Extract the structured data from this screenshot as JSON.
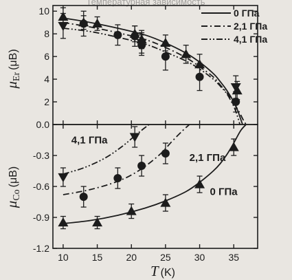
{
  "page_header": "Температурная зависимость",
  "chart_data": [
    {
      "type": "scatter",
      "panel": "top",
      "ylabel": {
        "symbol": "μ",
        "subscript": "Er",
        "unit": "(μB)"
      },
      "ylim": [
        0,
        10.5
      ],
      "yticks": [
        0.0,
        2,
        4,
        6,
        8,
        10
      ],
      "ytick_labels": [
        "0.0",
        "2",
        "4",
        "6",
        "8",
        "10"
      ],
      "xlim": [
        8.5,
        38.5
      ],
      "legend": {
        "placement": "top-right",
        "entries": [
          {
            "label": "0 ГПа",
            "line": "solid"
          },
          {
            "label": "2,1 ГПа",
            "line": "dash-dot"
          },
          {
            "label": "4,1 ГПа",
            "line": "dash-dot-dot"
          }
        ]
      },
      "series": [
        {
          "name": "0 ГПа",
          "marker": "triangle-up",
          "line": "solid",
          "points": [
            {
              "x": 10,
              "y": 9.5,
              "err": 0.8
            },
            {
              "x": 13,
              "y": 9.0,
              "err": 0.6
            },
            {
              "x": 15,
              "y": 8.9,
              "err": 0.6
            },
            {
              "x": 20.5,
              "y": 8.0,
              "err": 0.7
            },
            {
              "x": 21.5,
              "y": 7.5,
              "err": 0.8
            },
            {
              "x": 25,
              "y": 7.2,
              "err": 0.7
            },
            {
              "x": 28,
              "y": 6.2,
              "err": 0.8
            },
            {
              "x": 30,
              "y": 5.3,
              "err": 0.9
            },
            {
              "x": 35.5,
              "y": 3.0,
              "err": 0.8
            }
          ],
          "fit": {
            "x": [
              10,
              14,
              18,
              22,
              25,
              28,
              30,
              32,
              33,
              34,
              35,
              35.6,
              36.0,
              36.3
            ],
            "y": [
              9.4,
              9.0,
              8.5,
              7.9,
              7.2,
              6.3,
              5.5,
              4.5,
              3.8,
              3.0,
              2.0,
              1.2,
              0.5,
              0.0
            ]
          }
        },
        {
          "name": "2,1 ГПа",
          "marker": "circle",
          "line": "dash-dot",
          "points": [
            {
              "x": 13,
              "y": 8.9,
              "err": 1.1
            },
            {
              "x": 18,
              "y": 7.9,
              "err": 0.9
            },
            {
              "x": 20.5,
              "y": 7.8,
              "err": 0.9
            },
            {
              "x": 21.5,
              "y": 7.0,
              "err": 0.9
            },
            {
              "x": 25,
              "y": 6.0,
              "err": 1.2
            },
            {
              "x": 30,
              "y": 4.2,
              "err": 1.2
            },
            {
              "x": 35.3,
              "y": 2.0,
              "err": 0.9
            }
          ],
          "fit": {
            "x": [
              10,
              14,
              18,
              22,
              25,
              28,
              30,
              32,
              33,
              34,
              35,
              35.8,
              36.4,
              36.8
            ],
            "y": [
              9.0,
              8.6,
              8.1,
              7.5,
              6.8,
              5.9,
              5.1,
              4.2,
              3.5,
              2.8,
              1.9,
              1.1,
              0.4,
              0.0
            ]
          }
        },
        {
          "name": "4,1 ГПа",
          "marker": "triangle-down",
          "line": "dash-dot-dot",
          "points": [
            {
              "x": 10,
              "y": 8.7,
              "err": 1.1
            },
            {
              "x": 21.5,
              "y": 7.2,
              "err": 0.9
            },
            {
              "x": 35.3,
              "y": 3.3,
              "err": 1.0
            }
          ],
          "fit": {
            "x": [
              10,
              14,
              18,
              22,
              25,
              28,
              30,
              32,
              33,
              34,
              35,
              35.5,
              35.9
            ],
            "y": [
              8.5,
              8.2,
              7.7,
              7.1,
              6.4,
              5.6,
              4.9,
              4.0,
              3.4,
              2.7,
              1.6,
              0.8,
              0.0
            ]
          }
        }
      ]
    },
    {
      "type": "scatter",
      "panel": "bottom",
      "ylabel": {
        "symbol": "μ",
        "subscript": "Co",
        "unit": "(μB)"
      },
      "ylim": [
        -1.2,
        0.0
      ],
      "yticks": [
        -1.2,
        -0.9,
        -0.6,
        -0.3
      ],
      "ytick_labels": [
        "-1.2",
        "-0.9",
        "-0.6",
        "-0.3"
      ],
      "xlabel": {
        "symbol": "T",
        "unit": "(K)"
      },
      "xlim": [
        8.5,
        38.5
      ],
      "xticks": [
        10,
        15,
        20,
        25,
        30,
        35
      ],
      "xtick_labels": [
        "10",
        "15",
        "20",
        "25",
        "30",
        "35"
      ],
      "annotations": [
        {
          "text": "4,1 ГПа",
          "x": 16.5,
          "y": -0.15
        },
        {
          "text": "2,1 ГПа",
          "x": 28.5,
          "y": -0.32
        },
        {
          "text": "0 ГПа",
          "x": 31.5,
          "y": -0.65
        }
      ],
      "series": [
        {
          "name": "0 ГПа",
          "marker": "triangle-up",
          "line": "solid",
          "points": [
            {
              "x": 10,
              "y": -0.95,
              "err": 0.06
            },
            {
              "x": 15,
              "y": -0.95,
              "err": 0.06
            },
            {
              "x": 20,
              "y": -0.84,
              "err": 0.07
            },
            {
              "x": 25,
              "y": -0.76,
              "err": 0.08
            },
            {
              "x": 30,
              "y": -0.58,
              "err": 0.08
            },
            {
              "x": 35,
              "y": -0.22,
              "err": 0.08
            }
          ],
          "fit": {
            "x": [
              10,
              14,
              18,
              22,
              25,
              28,
              30,
              32,
              33,
              34,
              35,
              36,
              36.8
            ],
            "y": [
              -0.96,
              -0.93,
              -0.88,
              -0.81,
              -0.74,
              -0.65,
              -0.56,
              -0.45,
              -0.38,
              -0.29,
              -0.18,
              -0.06,
              0.0
            ]
          }
        },
        {
          "name": "2,1 ГПа",
          "marker": "circle",
          "line": "dash-dot",
          "points": [
            {
              "x": 13,
              "y": -0.7,
              "err": 0.1
            },
            {
              "x": 18,
              "y": -0.52,
              "err": 0.1
            },
            {
              "x": 21.5,
              "y": -0.4,
              "err": 0.1
            },
            {
              "x": 25,
              "y": -0.28,
              "err": 0.1
            }
          ],
          "fit": {
            "x": [
              10,
              14,
              18,
              21,
              24,
              26,
              27.5,
              28.5
            ],
            "y": [
              -0.68,
              -0.63,
              -0.55,
              -0.45,
              -0.3,
              -0.16,
              -0.06,
              0.0
            ]
          }
        },
        {
          "name": "4,1 ГПа",
          "marker": "triangle-down",
          "line": "dash-dot-dot",
          "points": [
            {
              "x": 10,
              "y": -0.51,
              "err": 0.09
            },
            {
              "x": 20.5,
              "y": -0.12,
              "err": 0.1
            }
          ],
          "fit": {
            "x": [
              10,
              13,
              16,
              18.5,
              20.5,
              21.8,
              22.6
            ],
            "y": [
              -0.48,
              -0.42,
              -0.33,
              -0.22,
              -0.11,
              -0.04,
              0.0
            ]
          }
        }
      ]
    }
  ]
}
